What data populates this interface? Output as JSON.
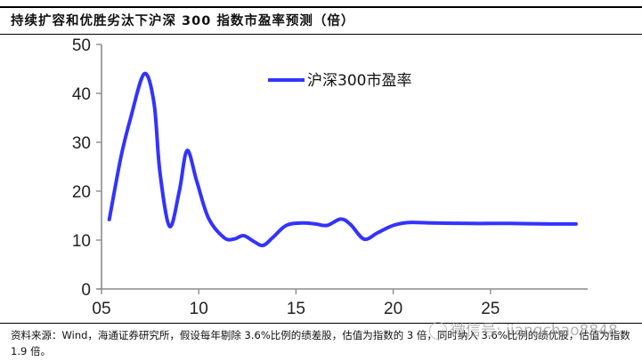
{
  "header": {
    "title": "持续扩容和优胜劣汰下沪深 300 指数市盈率预测（倍）"
  },
  "footer": {
    "source_note": "资料来源：Wind，海通证券研究所，假设每年剔除 3.6%比例的绩差股，估值为指数的 3 倍，同时纳入 3.6%比例的绩优股，估值为指数 1.9 倍。",
    "watermark": "微信号: jiangchao8848"
  },
  "colors": {
    "series_line": "#3333ff",
    "axis": "#8c8c8c",
    "text": "#222222"
  },
  "chart_data": {
    "type": "line",
    "title": "持续扩容和优胜劣汰下沪深 300 指数市盈率预测（倍）",
    "xlabel": "",
    "ylabel": "",
    "ylim": [
      0,
      50
    ],
    "xlim": [
      2005,
      2030
    ],
    "grid": false,
    "legend_position": "upper right (inside plot)",
    "x_tick_labels": [
      "05",
      "10",
      "15",
      "20",
      "25"
    ],
    "y_tick_labels": [
      "0",
      "10",
      "20",
      "30",
      "40",
      "50"
    ],
    "series": [
      {
        "name": "沪深300市盈率",
        "color": "#3333ff",
        "x": [
          2005.4,
          2006.0,
          2006.5,
          2007.2,
          2007.7,
          2008.0,
          2008.5,
          2009.0,
          2009.4,
          2009.9,
          2010.5,
          2011.3,
          2011.8,
          2012.3,
          2012.8,
          2013.3,
          2013.8,
          2014.5,
          2015.3,
          2016.0,
          2016.6,
          2017.3,
          2017.8,
          2018.5,
          2019.2,
          2020.0,
          2020.8,
          2022.0,
          2024.0,
          2026.0,
          2028.0,
          2029.4
        ],
        "values": [
          14.2,
          27.0,
          35.0,
          44.0,
          38.0,
          24.0,
          12.8,
          20.0,
          28.3,
          22.0,
          14.5,
          10.5,
          10.2,
          10.9,
          9.8,
          8.9,
          10.5,
          13.0,
          13.5,
          13.3,
          13.0,
          14.3,
          13.2,
          10.2,
          11.5,
          13.0,
          13.6,
          13.5,
          13.4,
          13.4,
          13.3,
          13.3
        ]
      }
    ]
  }
}
